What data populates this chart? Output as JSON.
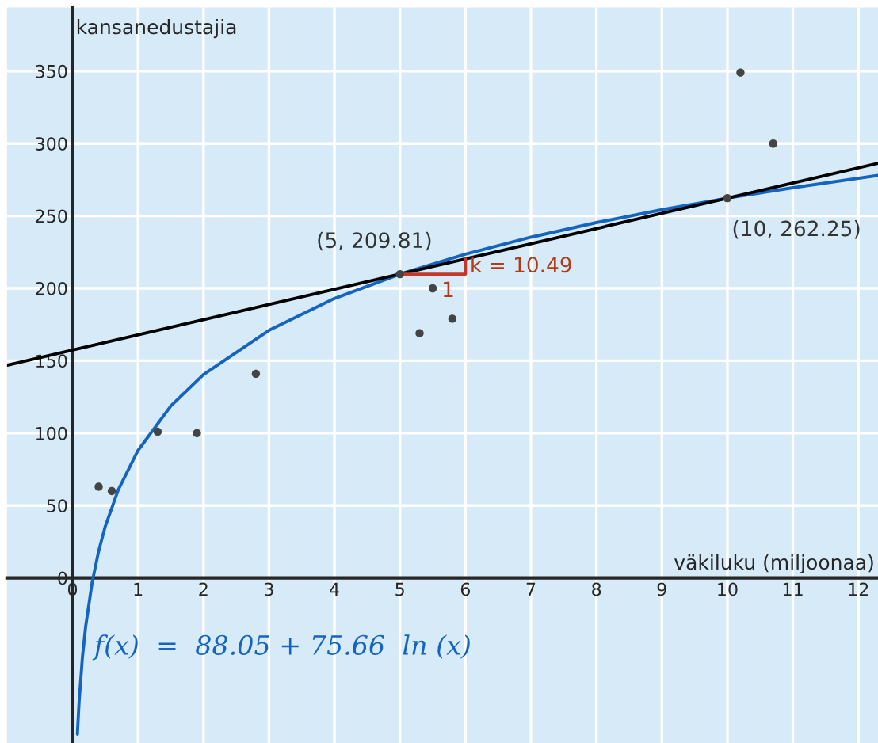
{
  "chart_data": {
    "type": "scatter",
    "xlabel": "väkiluku (miljoonaa)",
    "ylabel": "kansanedustajia",
    "xlim": [
      -1.0,
      12.3
    ],
    "ylim": [
      -114,
      394
    ],
    "xticks": [
      0,
      1,
      2,
      3,
      4,
      5,
      6,
      7,
      8,
      9,
      10,
      11,
      12
    ],
    "yticks": [
      0,
      50,
      100,
      150,
      200,
      250,
      300,
      350
    ],
    "grid": true,
    "series": [
      {
        "marker": "circle",
        "color": "#444444",
        "x": [
          0.4,
          0.6,
          1.3,
          1.9,
          2.8,
          5,
          5.3,
          5.5,
          5.8,
          10,
          10.2,
          10.7
        ],
        "values": [
          63,
          60,
          101,
          100,
          141,
          209.81,
          169,
          200,
          179,
          262.25,
          349,
          300
        ]
      },
      {
        "type": "line",
        "color": "#1565c0",
        "x": [
          0.075,
          0.08,
          0.1,
          0.15,
          0.2,
          0.3,
          0.4,
          0.5,
          0.7,
          1,
          1.5,
          2,
          3,
          4,
          5,
          6,
          7,
          8,
          9,
          10,
          11,
          12.3
        ],
        "values": [
          -108,
          -103,
          -86,
          -55.5,
          -33.7,
          -3,
          18.7,
          35.6,
          61,
          88,
          118.7,
          140.5,
          171,
          193,
          209.8,
          223.6,
          235.3,
          245.4,
          254.3,
          262.3,
          269.5,
          278
        ]
      },
      {
        "type": "line",
        "color": "#000000",
        "x": [
          -1.0,
          12.3
        ],
        "values": [
          146.9,
          286.4
        ]
      },
      {
        "type": "line",
        "color": "#c0392b",
        "x": [
          5,
          6,
          6
        ],
        "values": [
          209.81,
          209.81,
          220.3
        ]
      }
    ],
    "annotations": [
      {
        "text": "(5, 209.81)",
        "x": 5,
        "y": 209.81
      },
      {
        "text": "(10, 262.25)",
        "x": 10,
        "y": 262.25
      },
      {
        "text": "k = 10.49",
        "x": 6,
        "y": 215
      },
      {
        "text": "1",
        "x": 5.6,
        "y": 205
      },
      "f(x)  =  88.05 + 75.66  ln (x)"
    ]
  }
}
